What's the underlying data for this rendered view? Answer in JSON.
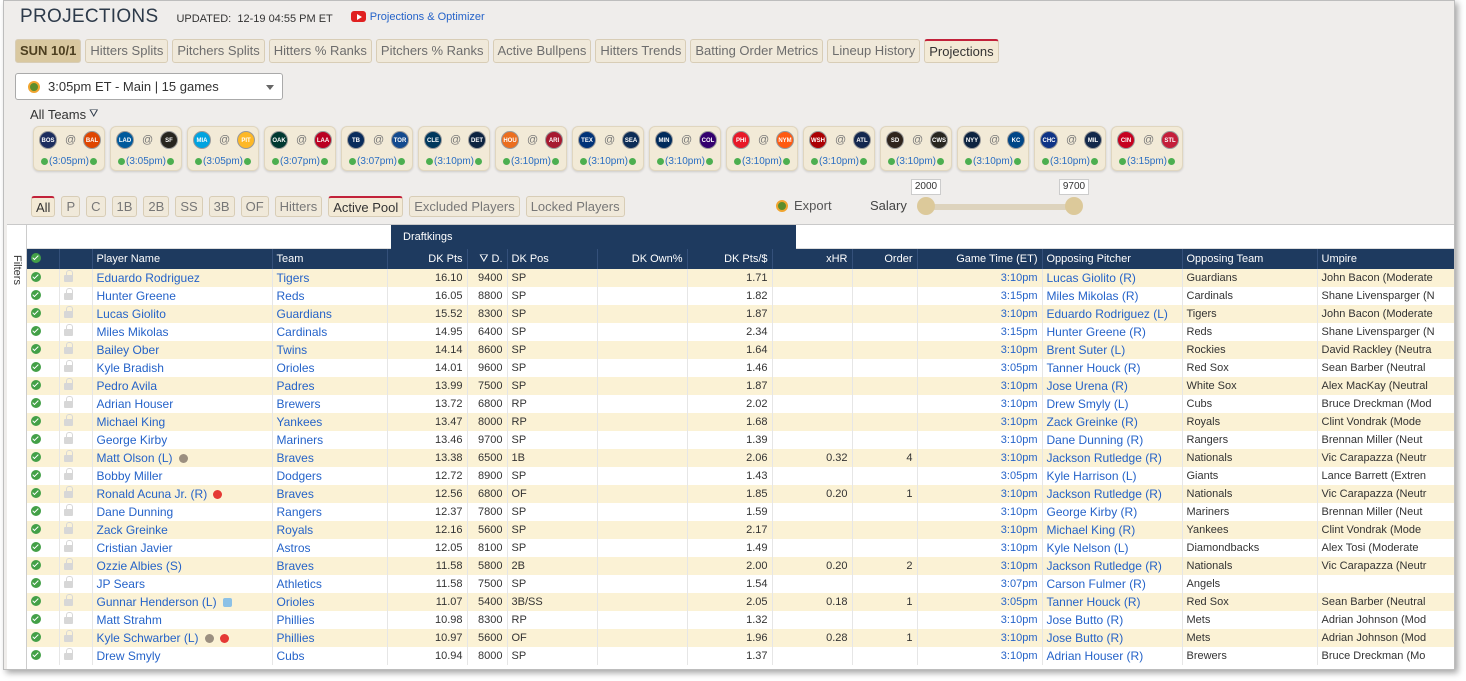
{
  "header": {
    "title": "PROJECTIONS",
    "updated_label": "UPDATED:",
    "updated_value": "12-19 04:55 PM ET",
    "video_link": "Projections & Optimizer"
  },
  "tabs": [
    {
      "label": "SUN 10/1",
      "kind": "date"
    },
    {
      "label": "Hitters Splits"
    },
    {
      "label": "Pitchers Splits"
    },
    {
      "label": "Hitters % Ranks"
    },
    {
      "label": "Pitchers % Ranks"
    },
    {
      "label": "Active Bullpens"
    },
    {
      "label": "Hitters Trends"
    },
    {
      "label": "Batting Order Metrics"
    },
    {
      "label": "Lineup History"
    },
    {
      "label": "Projections",
      "active": true
    }
  ],
  "slate": {
    "selected": "3:05pm ET - Main | 15 games"
  },
  "all_teams_label": "All Teams",
  "games": [
    {
      "away": "BOS",
      "home": "BAL",
      "time": "(3:05pm)",
      "away_color": "#1c2d5e",
      "home_color": "#df4601"
    },
    {
      "away": "LAD",
      "home": "SF",
      "time": "(3:05pm)",
      "away_color": "#005a9c",
      "home_color": "#27251f"
    },
    {
      "away": "MIA",
      "home": "PIT",
      "time": "(3:05pm)",
      "away_color": "#00a3e0",
      "home_color": "#fdb827"
    },
    {
      "away": "OAK",
      "home": "LAA",
      "time": "(3:07pm)",
      "away_color": "#003831",
      "home_color": "#ba0021"
    },
    {
      "away": "TB",
      "home": "TOR",
      "time": "(3:07pm)",
      "away_color": "#092c5c",
      "home_color": "#134a8e"
    },
    {
      "away": "CLE",
      "home": "DET",
      "time": "(3:10pm)",
      "away_color": "#00385d",
      "home_color": "#0c2340"
    },
    {
      "away": "HOU",
      "home": "ARI",
      "time": "(3:10pm)",
      "away_color": "#eb6e1f",
      "home_color": "#a71930"
    },
    {
      "away": "TEX",
      "home": "SEA",
      "time": "(3:10pm)",
      "away_color": "#003278",
      "home_color": "#0c2c56"
    },
    {
      "away": "MIN",
      "home": "COL",
      "time": "(3:10pm)",
      "away_color": "#002b5c",
      "home_color": "#33006f"
    },
    {
      "away": "PHI",
      "home": "NYM",
      "time": "(3:10pm)",
      "away_color": "#e81828",
      "home_color": "#ff5910"
    },
    {
      "away": "WSH",
      "home": "ATL",
      "time": "(3:10pm)",
      "away_color": "#ab0003",
      "home_color": "#13274f"
    },
    {
      "away": "SD",
      "home": "CWS",
      "time": "(3:10pm)",
      "away_color": "#2f241d",
      "home_color": "#27251f"
    },
    {
      "away": "NYY",
      "home": "KC",
      "time": "(3:10pm)",
      "away_color": "#0c2340",
      "home_color": "#004687"
    },
    {
      "away": "CHC",
      "home": "MIL",
      "time": "(3:10pm)",
      "away_color": "#0e3386",
      "home_color": "#12284b"
    },
    {
      "away": "CIN",
      "home": "STL",
      "time": "(3:15pm)",
      "away_color": "#c6011f",
      "home_color": "#c41e3a"
    }
  ],
  "positions": [
    "All",
    "P",
    "C",
    "1B",
    "2B",
    "SS",
    "3B",
    "OF",
    "Hitters",
    "Active Pool",
    "Excluded Players",
    "Locked Players"
  ],
  "export_label": "Export",
  "salary": {
    "label": "Salary",
    "min": "2000",
    "max": "9700"
  },
  "filters_label": "Filters",
  "group_header": "Draftkings",
  "columns": {
    "player": "Player Name",
    "team": "Team",
    "pts": "DK Pts",
    "sal": "D.",
    "pos": "DK Pos",
    "own": "DK Own%",
    "ptsd": "DK Pts/$",
    "xhr": "xHR",
    "order": "Order",
    "gtime": "Game Time (ET)",
    "opp_p": "Opposing Pitcher",
    "opp_t": "Opposing Team",
    "ump": "Umpire"
  },
  "rows": [
    {
      "name": "Eduardo Rodriguez",
      "team": "Tigers",
      "pts": "16.10",
      "sal": "9400",
      "pos": "SP",
      "ptsd": "1.71",
      "xhr": "",
      "order": "",
      "time": "3:10pm",
      "opp_p": "Lucas Giolito (R)",
      "opp_t": "Guardians",
      "ump": "John Bacon (Moderate"
    },
    {
      "name": "Hunter Greene",
      "team": "Reds",
      "pts": "16.05",
      "sal": "8800",
      "pos": "SP",
      "ptsd": "1.82",
      "xhr": "",
      "order": "",
      "time": "3:15pm",
      "opp_p": "Miles Mikolas (R)",
      "opp_t": "Cardinals",
      "ump": "Shane Livensparger (N"
    },
    {
      "name": "Lucas Giolito",
      "team": "Guardians",
      "pts": "15.52",
      "sal": "8300",
      "pos": "SP",
      "ptsd": "1.87",
      "xhr": "",
      "order": "",
      "time": "3:10pm",
      "opp_p": "Eduardo Rodriguez (L)",
      "opp_t": "Tigers",
      "ump": "John Bacon (Moderate"
    },
    {
      "name": "Miles Mikolas",
      "team": "Cardinals",
      "pts": "14.95",
      "sal": "6400",
      "pos": "SP",
      "ptsd": "2.34",
      "xhr": "",
      "order": "",
      "time": "3:15pm",
      "opp_p": "Hunter Greene (R)",
      "opp_t": "Reds",
      "ump": "Shane Livensparger (N"
    },
    {
      "name": "Bailey Ober",
      "team": "Twins",
      "pts": "14.14",
      "sal": "8600",
      "pos": "SP",
      "ptsd": "1.64",
      "xhr": "",
      "order": "",
      "time": "3:10pm",
      "opp_p": "Brent Suter (L)",
      "opp_t": "Rockies",
      "ump": "David Rackley (Neutra"
    },
    {
      "name": "Kyle Bradish",
      "team": "Orioles",
      "pts": "14.01",
      "sal": "9600",
      "pos": "SP",
      "ptsd": "1.46",
      "xhr": "",
      "order": "",
      "time": "3:05pm",
      "opp_p": "Tanner Houck (R)",
      "opp_t": "Red Sox",
      "ump": "Sean Barber (Neutral"
    },
    {
      "name": "Pedro Avila",
      "team": "Padres",
      "pts": "13.99",
      "sal": "7500",
      "pos": "SP",
      "ptsd": "1.87",
      "xhr": "",
      "order": "",
      "time": "3:10pm",
      "opp_p": "Jose Urena (R)",
      "opp_t": "White Sox",
      "ump": "Alex MacKay (Neutral"
    },
    {
      "name": "Adrian Houser",
      "team": "Brewers",
      "pts": "13.72",
      "sal": "6800",
      "pos": "RP",
      "ptsd": "2.02",
      "xhr": "",
      "order": "",
      "time": "3:10pm",
      "opp_p": "Drew Smyly (L)",
      "opp_t": "Cubs",
      "ump": "Bruce Dreckman (Mod"
    },
    {
      "name": "Michael King",
      "team": "Yankees",
      "pts": "13.47",
      "sal": "8000",
      "pos": "RP",
      "ptsd": "1.68",
      "xhr": "",
      "order": "",
      "time": "3:10pm",
      "opp_p": "Zack Greinke (R)",
      "opp_t": "Royals",
      "ump": "Clint Vondrak (Mode"
    },
    {
      "name": "George Kirby",
      "team": "Mariners",
      "pts": "13.46",
      "sal": "9700",
      "pos": "SP",
      "ptsd": "1.39",
      "xhr": "",
      "order": "",
      "time": "3:10pm",
      "opp_p": "Dane Dunning (R)",
      "opp_t": "Rangers",
      "ump": "Brennan Miller (Neut"
    },
    {
      "name": "Matt Olson (L)",
      "badge": "info",
      "team": "Braves",
      "pts": "13.38",
      "sal": "6500",
      "pos": "1B",
      "ptsd": "2.06",
      "xhr": "0.32",
      "order": "4",
      "time": "3:10pm",
      "opp_p": "Jackson Rutledge (R)",
      "opp_t": "Nationals",
      "ump": "Vic Carapazza (Neutr"
    },
    {
      "name": "Bobby Miller",
      "team": "Dodgers",
      "pts": "12.72",
      "sal": "8900",
      "pos": "SP",
      "ptsd": "1.43",
      "xhr": "",
      "order": "",
      "time": "3:05pm",
      "opp_p": "Kyle Harrison (L)",
      "opp_t": "Giants",
      "ump": "Lance Barrett (Extren"
    },
    {
      "name": "Ronald Acuna Jr. (R)",
      "badge": "fire",
      "team": "Braves",
      "pts": "12.56",
      "sal": "6800",
      "pos": "OF",
      "ptsd": "1.85",
      "xhr": "0.20",
      "order": "1",
      "time": "3:10pm",
      "opp_p": "Jackson Rutledge (R)",
      "opp_t": "Nationals",
      "ump": "Vic Carapazza (Neutr"
    },
    {
      "name": "Dane Dunning",
      "team": "Rangers",
      "pts": "12.37",
      "sal": "7800",
      "pos": "SP",
      "ptsd": "1.59",
      "xhr": "",
      "order": "",
      "time": "3:10pm",
      "opp_p": "George Kirby (R)",
      "opp_t": "Mariners",
      "ump": "Brennan Miller (Neut"
    },
    {
      "name": "Zack Greinke",
      "team": "Royals",
      "pts": "12.16",
      "sal": "5600",
      "pos": "SP",
      "ptsd": "2.17",
      "xhr": "",
      "order": "",
      "time": "3:10pm",
      "opp_p": "Michael King (R)",
      "opp_t": "Yankees",
      "ump": "Clint Vondrak (Mode"
    },
    {
      "name": "Cristian Javier",
      "team": "Astros",
      "pts": "12.05",
      "sal": "8100",
      "pos": "SP",
      "ptsd": "1.49",
      "xhr": "",
      "order": "",
      "time": "3:10pm",
      "opp_p": "Kyle Nelson (L)",
      "opp_t": "Diamondbacks",
      "ump": "Alex Tosi (Moderate"
    },
    {
      "name": "Ozzie Albies (S)",
      "team": "Braves",
      "pts": "11.58",
      "sal": "5800",
      "pos": "2B",
      "ptsd": "2.00",
      "xhr": "0.20",
      "order": "2",
      "time": "3:10pm",
      "opp_p": "Jackson Rutledge (R)",
      "opp_t": "Nationals",
      "ump": "Vic Carapazza (Neutr"
    },
    {
      "name": "JP Sears",
      "team": "Athletics",
      "pts": "11.58",
      "sal": "7500",
      "pos": "SP",
      "ptsd": "1.54",
      "xhr": "",
      "order": "",
      "time": "3:07pm",
      "opp_p": "Carson Fulmer (R)",
      "opp_t": "Angels",
      "ump": ""
    },
    {
      "name": "Gunnar Henderson (L)",
      "badge": "cup",
      "team": "Orioles",
      "pts": "11.07",
      "sal": "5400",
      "pos": "3B/SS",
      "ptsd": "2.05",
      "xhr": "0.18",
      "order": "1",
      "time": "3:05pm",
      "opp_p": "Tanner Houck (R)",
      "opp_t": "Red Sox",
      "ump": "Sean Barber (Neutral"
    },
    {
      "name": "Matt Strahm",
      "team": "Phillies",
      "pts": "10.98",
      "sal": "8300",
      "pos": "RP",
      "ptsd": "1.32",
      "xhr": "",
      "order": "",
      "time": "3:10pm",
      "opp_p": "Jose Butto (R)",
      "opp_t": "Mets",
      "ump": "Adrian Johnson (Mod"
    },
    {
      "name": "Kyle Schwarber (L)",
      "badge": "info fire",
      "team": "Phillies",
      "pts": "10.97",
      "sal": "5600",
      "pos": "OF",
      "ptsd": "1.96",
      "xhr": "0.28",
      "order": "1",
      "time": "3:10pm",
      "opp_p": "Jose Butto (R)",
      "opp_t": "Mets",
      "ump": "Adrian Johnson (Mod"
    },
    {
      "name": "Drew Smyly",
      "team": "Cubs",
      "pts": "10.94",
      "sal": "8000",
      "pos": "SP",
      "ptsd": "1.37",
      "xhr": "",
      "order": "",
      "time": "3:10pm",
      "opp_p": "Adrian Houser (R)",
      "opp_t": "Brewers",
      "ump": "Bruce Dreckman (Mo"
    }
  ]
}
